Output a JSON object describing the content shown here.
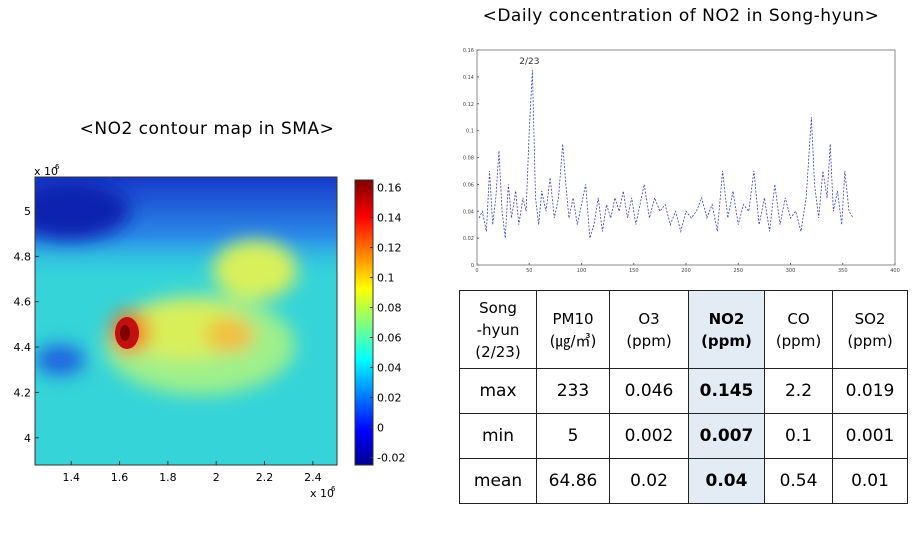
{
  "chart_data": [
    {
      "type": "contour",
      "title": "<NO2 contour map in SMA>",
      "xlim": [
        1.25,
        2.5
      ],
      "xticks": [
        1.4,
        1.6,
        1.8,
        2,
        2.2,
        2.4
      ],
      "ylim": [
        3.88,
        5.15
      ],
      "yticks": [
        4,
        4.2,
        4.4,
        4.6,
        4.8,
        5
      ],
      "x_multiplier": "x 10",
      "x_power": "6",
      "y_multiplier": "x 10",
      "y_power": "6",
      "clim": [
        -0.025,
        0.165
      ],
      "cticks": [
        -0.02,
        0,
        0.02,
        0.04,
        0.06,
        0.08,
        0.1,
        0.12,
        0.14,
        0.16
      ]
    },
    {
      "type": "line",
      "title": "<Daily concentration of NO2 in Song-hyun>",
      "annotation": "2/23",
      "xlim": [
        0,
        400
      ],
      "xticks": [
        0,
        50,
        100,
        150,
        200,
        250,
        300,
        350,
        400
      ],
      "ylim": [
        0,
        0.16
      ],
      "yticks": [
        0,
        0.02,
        0.04,
        0.06,
        0.08,
        0.1,
        0.12,
        0.14,
        0.16
      ],
      "x": [
        2,
        5,
        9,
        12,
        15,
        18,
        21,
        24,
        27,
        30,
        33,
        37,
        40,
        44,
        47,
        50,
        53,
        56,
        59,
        62,
        66,
        70,
        74,
        78,
        82,
        85,
        88,
        92,
        96,
        100,
        104,
        108,
        112,
        116,
        120,
        124,
        128,
        132,
        136,
        140,
        144,
        148,
        152,
        156,
        160,
        165,
        170,
        175,
        180,
        185,
        190,
        195,
        200,
        205,
        210,
        215,
        220,
        225,
        230,
        235,
        240,
        245,
        250,
        255,
        260,
        265,
        270,
        275,
        280,
        285,
        290,
        295,
        300,
        305,
        310,
        315,
        320,
        323,
        327,
        331,
        335,
        338,
        341,
        345,
        349,
        352,
        356,
        360
      ],
      "series": [
        {
          "color": "#3b3bd0",
          "values": [
            0.035,
            0.04,
            0.025,
            0.07,
            0.03,
            0.05,
            0.085,
            0.04,
            0.02,
            0.06,
            0.035,
            0.055,
            0.03,
            0.05,
            0.04,
            0.1,
            0.145,
            0.05,
            0.03,
            0.055,
            0.04,
            0.065,
            0.035,
            0.05,
            0.09,
            0.06,
            0.035,
            0.05,
            0.03,
            0.045,
            0.06,
            0.02,
            0.03,
            0.05,
            0.025,
            0.045,
            0.035,
            0.05,
            0.04,
            0.055,
            0.035,
            0.05,
            0.03,
            0.045,
            0.06,
            0.035,
            0.05,
            0.04,
            0.045,
            0.03,
            0.04,
            0.025,
            0.04,
            0.035,
            0.04,
            0.05,
            0.035,
            0.045,
            0.025,
            0.07,
            0.035,
            0.055,
            0.03,
            0.045,
            0.04,
            0.07,
            0.03,
            0.05,
            0.025,
            0.06,
            0.03,
            0.05,
            0.035,
            0.04,
            0.025,
            0.05,
            0.11,
            0.06,
            0.035,
            0.07,
            0.05,
            0.09,
            0.04,
            0.055,
            0.03,
            0.07,
            0.04,
            0.035
          ]
        }
      ]
    }
  ],
  "table": {
    "header": [
      "Song\n-hyun\n(2/23)",
      "PM10\n(㎍/㎥)",
      "O3\n(ppm)",
      "NO2\n(ppm)",
      "CO\n(ppm)",
      "SO2\n(ppm)"
    ],
    "rows": [
      [
        "max",
        233,
        0.046,
        0.145,
        2.2,
        0.019
      ],
      [
        "min",
        5,
        0.002,
        0.007,
        0.1,
        0.001
      ],
      [
        "mean",
        64.86,
        0.02,
        0.04,
        0.54,
        0.01
      ]
    ]
  }
}
